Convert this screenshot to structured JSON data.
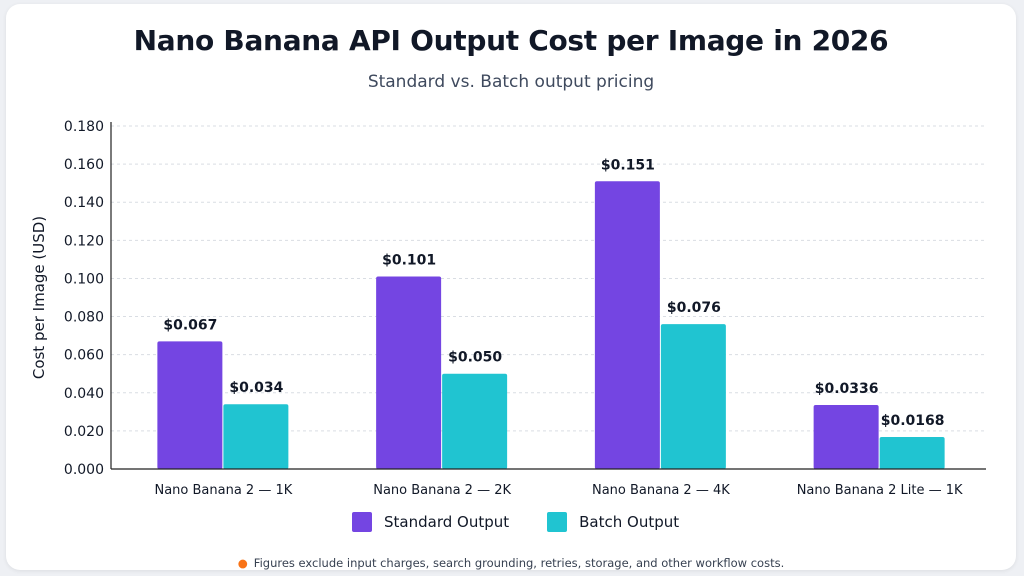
{
  "chart_data": {
    "type": "bar",
    "title": "Nano Banana API Output Cost per Image in 2026",
    "subtitle": "Standard vs. Batch output pricing",
    "xlabel": "",
    "ylabel": "Cost per Image (USD)",
    "ylim": [
      0,
      0.18
    ],
    "yticks": [
      "0.000",
      "0.020",
      "0.040",
      "0.060",
      "0.080",
      "0.100",
      "0.120",
      "0.140",
      "0.160",
      "0.180"
    ],
    "categories": [
      "Nano Banana 2 — 1K",
      "Nano Banana 2 — 2K",
      "Nano Banana 2 — 4K",
      "Nano Banana 2 Lite — 1K"
    ],
    "series": [
      {
        "name": "Standard Output",
        "color": "#7445e2",
        "values": [
          0.067,
          0.101,
          0.151,
          0.0336
        ],
        "labels": [
          "$0.067",
          "$0.101",
          "$0.151",
          "$0.0336"
        ]
      },
      {
        "name": "Batch Output",
        "color": "#20c4d1",
        "values": [
          0.034,
          0.05,
          0.076,
          0.0168
        ],
        "labels": [
          "$0.034",
          "$0.050",
          "$0.076",
          "$0.0168"
        ]
      }
    ],
    "grid": true,
    "legend": "bottom-center"
  },
  "footnote": "Figures exclude input charges, search grounding, retries, storage, and other workflow costs."
}
